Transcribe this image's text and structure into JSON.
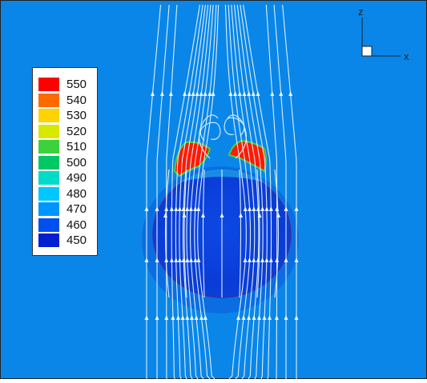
{
  "legend": {
    "levels": [
      {
        "value": "550",
        "color": "#ff0000"
      },
      {
        "value": "540",
        "color": "#ff6a00"
      },
      {
        "value": "530",
        "color": "#ffd200"
      },
      {
        "value": "520",
        "color": "#d8e800"
      },
      {
        "value": "510",
        "color": "#3cd23c"
      },
      {
        "value": "500",
        "color": "#00c864"
      },
      {
        "value": "490",
        "color": "#00dcc8"
      },
      {
        "value": "480",
        "color": "#00c8ff"
      },
      {
        "value": "470",
        "color": "#0096ff"
      },
      {
        "value": "460",
        "color": "#0050f0"
      },
      {
        "value": "450",
        "color": "#0020d2"
      }
    ]
  },
  "axes": {
    "vertical_label": "z",
    "horizontal_label": "x"
  },
  "colors": {
    "background_field": "#0a86e8",
    "sphere": "#0a3fd8",
    "hot_spot": "#ff1a00",
    "streamline": "#e8f6ff"
  }
}
